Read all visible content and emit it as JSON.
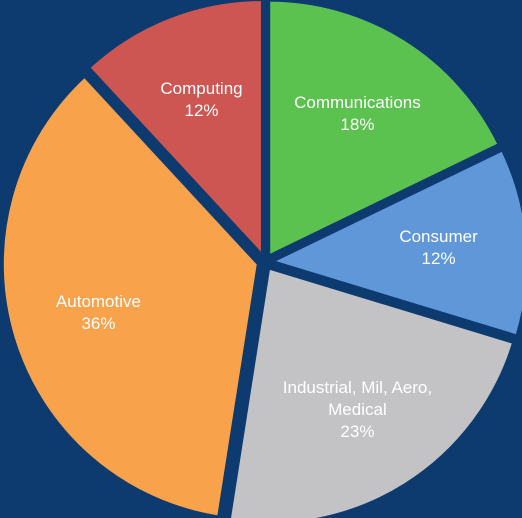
{
  "chart_data": {
    "type": "pie",
    "categories": [
      "Communications",
      "Consumer",
      "Industrial, Mil, Aero, Medical",
      "Automotive",
      "Computing"
    ],
    "values": [
      18,
      12,
      23,
      36,
      12
    ],
    "value_labels": [
      "18%",
      "12%",
      "23%",
      "36%",
      "12%"
    ],
    "colors": [
      "#5cc24f",
      "#5f97d9",
      "#c3c3c6",
      "#f9a24c",
      "#cd5653"
    ]
  }
}
